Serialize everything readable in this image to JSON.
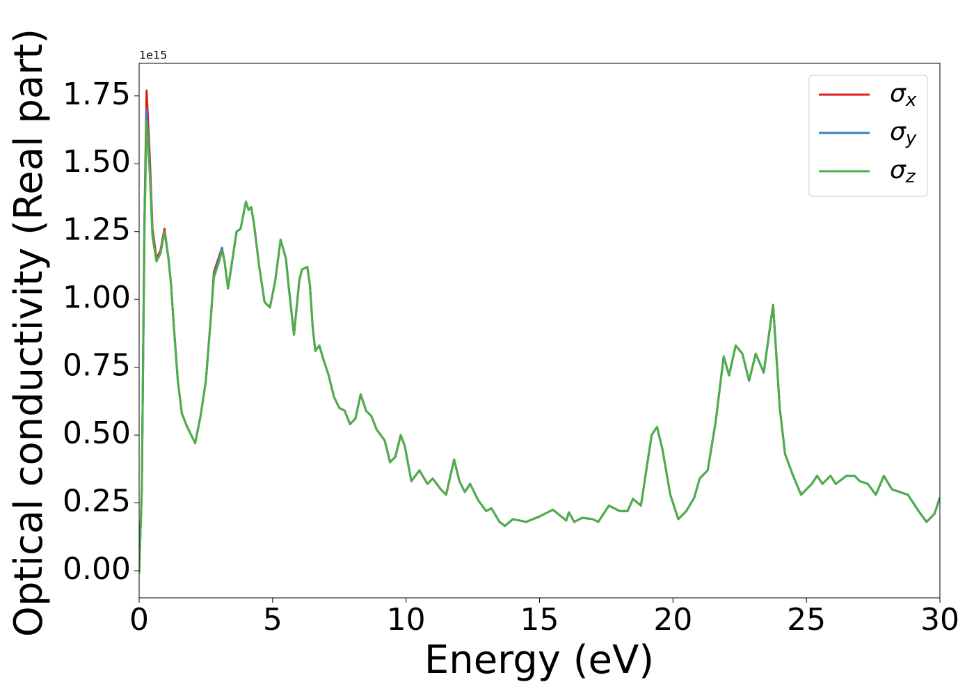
{
  "chart_data": {
    "type": "line",
    "x_label": "Energy (eV)",
    "y_label": "Optical conductivity (Real part)",
    "y_offset_label": "1e15",
    "x": [
      0,
      0.1,
      0.2,
      0.28,
      0.4,
      0.5,
      0.65,
      0.8,
      0.95,
      1.1,
      1.2,
      1.3,
      1.45,
      1.6,
      1.8,
      2.0,
      2.1,
      2.3,
      2.5,
      2.7,
      2.8,
      3.0,
      3.1,
      3.2,
      3.33,
      3.5,
      3.65,
      3.8,
      4.0,
      4.1,
      4.2,
      4.3,
      4.5,
      4.7,
      4.9,
      5.1,
      5.3,
      5.5,
      5.6,
      5.8,
      6.0,
      6.1,
      6.3,
      6.4,
      6.5,
      6.6,
      6.75,
      6.9,
      7.1,
      7.3,
      7.5,
      7.7,
      7.9,
      8.1,
      8.3,
      8.5,
      8.7,
      8.9,
      9.2,
      9.4,
      9.6,
      9.8,
      9.95,
      10.2,
      10.5,
      10.8,
      11.0,
      11.3,
      11.5,
      11.8,
      12.0,
      12.2,
      12.4,
      12.7,
      13.0,
      13.2,
      13.5,
      13.7,
      14.0,
      14.5,
      15.0,
      15.5,
      16.0,
      16.1,
      16.3,
      16.6,
      17.0,
      17.2,
      17.6,
      18.0,
      18.3,
      18.5,
      18.8,
      19.2,
      19.4,
      19.6,
      19.9,
      20.2,
      20.5,
      20.8,
      21.0,
      21.3,
      21.6,
      21.9,
      22.1,
      22.35,
      22.6,
      22.85,
      23.1,
      23.4,
      23.75,
      24.0,
      24.2,
      24.5,
      24.8,
      25.2,
      25.4,
      25.6,
      25.9,
      26.1,
      26.5,
      26.8,
      27.0,
      27.3,
      27.6,
      27.9,
      28.2,
      28.5,
      28.8,
      29.2,
      29.5,
      29.8,
      30.0
    ],
    "series": [
      {
        "name": "σx",
        "color": "#e41a1c",
        "values": [
          -0.01,
          0.3,
          1.3,
          1.77,
          1.52,
          1.26,
          1.15,
          1.18,
          1.26,
          1.15,
          1.05,
          0.9,
          0.7,
          0.58,
          0.53,
          0.49,
          0.47,
          0.57,
          0.7,
          0.95,
          1.1,
          1.16,
          1.19,
          1.14,
          1.04,
          1.15,
          1.25,
          1.26,
          1.36,
          1.33,
          1.34,
          1.28,
          1.12,
          0.99,
          0.97,
          1.07,
          1.22,
          1.15,
          1.05,
          0.87,
          1.07,
          1.11,
          1.12,
          1.05,
          0.9,
          0.81,
          0.83,
          0.78,
          0.72,
          0.64,
          0.6,
          0.59,
          0.54,
          0.56,
          0.65,
          0.59,
          0.57,
          0.52,
          0.48,
          0.4,
          0.42,
          0.5,
          0.46,
          0.33,
          0.37,
          0.32,
          0.34,
          0.3,
          0.28,
          0.41,
          0.33,
          0.29,
          0.32,
          0.26,
          0.22,
          0.23,
          0.18,
          0.165,
          0.19,
          0.18,
          0.2,
          0.225,
          0.185,
          0.215,
          0.18,
          0.195,
          0.19,
          0.18,
          0.24,
          0.22,
          0.22,
          0.265,
          0.24,
          0.5,
          0.53,
          0.45,
          0.28,
          0.19,
          0.22,
          0.27,
          0.34,
          0.37,
          0.55,
          0.79,
          0.72,
          0.83,
          0.8,
          0.7,
          0.8,
          0.73,
          0.98,
          0.6,
          0.43,
          0.35,
          0.28,
          0.32,
          0.35,
          0.32,
          0.35,
          0.32,
          0.35,
          0.35,
          0.33,
          0.32,
          0.28,
          0.35,
          0.3,
          0.29,
          0.28,
          0.22,
          0.18,
          0.21,
          0.27
        ]
      },
      {
        "name": "σy",
        "color": "#377eb8",
        "values": [
          -0.01,
          0.3,
          1.28,
          1.7,
          1.48,
          1.24,
          1.14,
          1.17,
          1.25,
          1.15,
          1.05,
          0.9,
          0.7,
          0.58,
          0.53,
          0.49,
          0.47,
          0.57,
          0.7,
          0.95,
          1.09,
          1.15,
          1.19,
          1.14,
          1.04,
          1.15,
          1.25,
          1.26,
          1.36,
          1.33,
          1.34,
          1.28,
          1.12,
          0.99,
          0.97,
          1.07,
          1.22,
          1.15,
          1.05,
          0.87,
          1.07,
          1.11,
          1.12,
          1.05,
          0.9,
          0.81,
          0.83,
          0.78,
          0.72,
          0.64,
          0.6,
          0.59,
          0.54,
          0.56,
          0.65,
          0.59,
          0.57,
          0.52,
          0.48,
          0.4,
          0.42,
          0.5,
          0.46,
          0.33,
          0.37,
          0.32,
          0.34,
          0.3,
          0.28,
          0.41,
          0.33,
          0.29,
          0.32,
          0.26,
          0.22,
          0.23,
          0.18,
          0.165,
          0.19,
          0.18,
          0.2,
          0.225,
          0.185,
          0.215,
          0.18,
          0.195,
          0.19,
          0.18,
          0.24,
          0.22,
          0.22,
          0.265,
          0.24,
          0.5,
          0.53,
          0.45,
          0.28,
          0.19,
          0.22,
          0.27,
          0.34,
          0.37,
          0.55,
          0.79,
          0.72,
          0.83,
          0.8,
          0.7,
          0.8,
          0.73,
          0.98,
          0.6,
          0.43,
          0.35,
          0.28,
          0.32,
          0.35,
          0.32,
          0.35,
          0.32,
          0.35,
          0.35,
          0.33,
          0.32,
          0.28,
          0.35,
          0.3,
          0.29,
          0.28,
          0.22,
          0.18,
          0.21,
          0.27
        ]
      },
      {
        "name": "σz",
        "color": "#4daf4a",
        "values": [
          -0.01,
          0.3,
          1.25,
          1.66,
          1.46,
          1.23,
          1.14,
          1.17,
          1.25,
          1.15,
          1.05,
          0.9,
          0.7,
          0.58,
          0.53,
          0.49,
          0.47,
          0.57,
          0.7,
          0.95,
          1.08,
          1.14,
          1.18,
          1.14,
          1.04,
          1.15,
          1.25,
          1.26,
          1.36,
          1.33,
          1.34,
          1.28,
          1.12,
          0.99,
          0.97,
          1.07,
          1.22,
          1.15,
          1.05,
          0.87,
          1.07,
          1.11,
          1.12,
          1.05,
          0.9,
          0.81,
          0.83,
          0.78,
          0.72,
          0.64,
          0.6,
          0.59,
          0.54,
          0.56,
          0.65,
          0.59,
          0.57,
          0.52,
          0.48,
          0.4,
          0.42,
          0.5,
          0.46,
          0.33,
          0.37,
          0.32,
          0.34,
          0.3,
          0.28,
          0.41,
          0.33,
          0.29,
          0.32,
          0.26,
          0.22,
          0.23,
          0.18,
          0.165,
          0.19,
          0.18,
          0.2,
          0.225,
          0.185,
          0.215,
          0.18,
          0.195,
          0.19,
          0.18,
          0.24,
          0.22,
          0.22,
          0.265,
          0.24,
          0.5,
          0.53,
          0.45,
          0.28,
          0.19,
          0.22,
          0.27,
          0.34,
          0.37,
          0.55,
          0.79,
          0.72,
          0.83,
          0.8,
          0.7,
          0.8,
          0.73,
          0.98,
          0.6,
          0.43,
          0.35,
          0.28,
          0.32,
          0.35,
          0.32,
          0.35,
          0.32,
          0.35,
          0.35,
          0.33,
          0.32,
          0.28,
          0.35,
          0.3,
          0.29,
          0.28,
          0.22,
          0.18,
          0.21,
          0.27
        ]
      }
    ],
    "xlim": [
      0,
      30
    ],
    "xticks": [
      0,
      5,
      10,
      15,
      20,
      25,
      30
    ],
    "ylim": [
      -0.1,
      1.87
    ],
    "yticks": [
      {
        "value": 0,
        "label": "0.00"
      },
      {
        "value": 0.25,
        "label": "0.25"
      },
      {
        "value": 0.5,
        "label": "0.50"
      },
      {
        "value": 0.75,
        "label": "0.75"
      },
      {
        "value": 1,
        "label": "1.00"
      },
      {
        "value": 1.25,
        "label": "1.25"
      },
      {
        "value": 1.5,
        "label": "1.50"
      },
      {
        "value": 1.75,
        "label": "1.75"
      }
    ],
    "grid": false,
    "legend": "upper right"
  }
}
